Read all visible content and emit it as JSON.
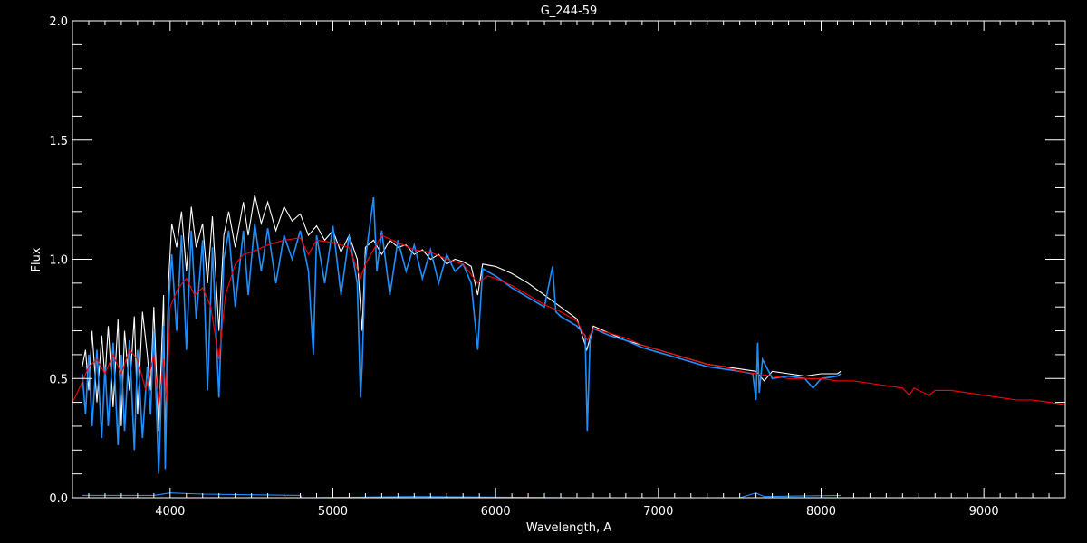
{
  "chart_data": {
    "type": "line",
    "title": "G_244-59",
    "xlabel": "Wavelength, A",
    "ylabel": "Flux",
    "xlim": [
      3400,
      9500
    ],
    "ylim": [
      0.0,
      2.0
    ],
    "xticks": [
      4000,
      5000,
      6000,
      7000,
      8000,
      9000
    ],
    "xtick_labels": [
      "4000",
      "5000",
      "6000",
      "7000",
      "8000",
      "9000"
    ],
    "x_minor_step": 100,
    "yticks": [
      0.0,
      0.5,
      1.0,
      1.5,
      2.0
    ],
    "ytick_labels": [
      "0.0",
      "0.5",
      "1.0",
      "1.5",
      "2.0"
    ],
    "y_minor_step": 0.1,
    "grid": false,
    "background": "#000000",
    "series": [
      {
        "color": "#ffffff",
        "points": [
          [
            3460,
            0.55
          ],
          [
            3480,
            0.62
          ],
          [
            3500,
            0.45
          ],
          [
            3520,
            0.7
          ],
          [
            3550,
            0.4
          ],
          [
            3580,
            0.68
          ],
          [
            3600,
            0.5
          ],
          [
            3620,
            0.72
          ],
          [
            3650,
            0.38
          ],
          [
            3680,
            0.75
          ],
          [
            3700,
            0.3
          ],
          [
            3720,
            0.7
          ],
          [
            3750,
            0.45
          ],
          [
            3780,
            0.76
          ],
          [
            3800,
            0.35
          ],
          [
            3830,
            0.78
          ],
          [
            3860,
            0.6
          ],
          [
            3880,
            0.45
          ],
          [
            3900,
            0.8
          ],
          [
            3930,
            0.28
          ],
          [
            3960,
            0.85
          ],
          [
            3970,
            0.2
          ],
          [
            3990,
            0.9
          ],
          [
            4010,
            1.15
          ],
          [
            4040,
            1.05
          ],
          [
            4070,
            1.2
          ],
          [
            4100,
            0.95
          ],
          [
            4130,
            1.22
          ],
          [
            4160,
            1.05
          ],
          [
            4200,
            1.15
          ],
          [
            4230,
            0.9
          ],
          [
            4260,
            1.18
          ],
          [
            4300,
            0.7
          ],
          [
            4330,
            1.1
          ],
          [
            4360,
            1.2
          ],
          [
            4400,
            1.05
          ],
          [
            4450,
            1.24
          ],
          [
            4480,
            1.1
          ],
          [
            4520,
            1.27
          ],
          [
            4560,
            1.15
          ],
          [
            4600,
            1.24
          ],
          [
            4650,
            1.12
          ],
          [
            4700,
            1.22
          ],
          [
            4750,
            1.16
          ],
          [
            4800,
            1.19
          ],
          [
            4850,
            1.1
          ],
          [
            4900,
            1.14
          ],
          [
            4950,
            1.08
          ],
          [
            5000,
            1.12
          ],
          [
            5050,
            1.03
          ],
          [
            5100,
            1.1
          ],
          [
            5150,
            1.0
          ],
          [
            5180,
            0.7
          ],
          [
            5200,
            1.05
          ],
          [
            5250,
            1.08
          ],
          [
            5300,
            1.02
          ],
          [
            5350,
            1.08
          ],
          [
            5400,
            1.05
          ],
          [
            5450,
            1.06
          ],
          [
            5500,
            1.02
          ],
          [
            5550,
            1.04
          ],
          [
            5600,
            1.0
          ],
          [
            5650,
            1.02
          ],
          [
            5700,
            0.98
          ],
          [
            5750,
            1.0
          ],
          [
            5800,
            0.99
          ],
          [
            5850,
            0.97
          ],
          [
            5890,
            0.85
          ],
          [
            5920,
            0.98
          ],
          [
            6000,
            0.97
          ],
          [
            6100,
            0.94
          ],
          [
            6200,
            0.9
          ],
          [
            6300,
            0.85
          ],
          [
            6400,
            0.8
          ],
          [
            6500,
            0.75
          ],
          [
            6560,
            0.62
          ],
          [
            6600,
            0.72
          ],
          [
            6700,
            0.69
          ],
          [
            6800,
            0.66
          ],
          [
            6900,
            0.64
          ],
          [
            7000,
            0.62
          ],
          [
            7100,
            0.6
          ],
          [
            7200,
            0.58
          ],
          [
            7300,
            0.56
          ],
          [
            7400,
            0.55
          ],
          [
            7500,
            0.54
          ],
          [
            7600,
            0.53
          ],
          [
            7650,
            0.49
          ],
          [
            7700,
            0.53
          ],
          [
            7800,
            0.52
          ],
          [
            7900,
            0.51
          ],
          [
            8000,
            0.52
          ],
          [
            8100,
            0.52
          ],
          [
            8120,
            0.53
          ]
        ]
      },
      {
        "color": "#1e8fff",
        "points": [
          [
            3460,
            0.52
          ],
          [
            3480,
            0.35
          ],
          [
            3500,
            0.6
          ],
          [
            3520,
            0.3
          ],
          [
            3550,
            0.62
          ],
          [
            3580,
            0.25
          ],
          [
            3600,
            0.55
          ],
          [
            3620,
            0.3
          ],
          [
            3650,
            0.65
          ],
          [
            3680,
            0.22
          ],
          [
            3700,
            0.6
          ],
          [
            3720,
            0.28
          ],
          [
            3750,
            0.66
          ],
          [
            3780,
            0.2
          ],
          [
            3800,
            0.62
          ],
          [
            3830,
            0.25
          ],
          [
            3860,
            0.55
          ],
          [
            3880,
            0.35
          ],
          [
            3900,
            0.7
          ],
          [
            3930,
            0.1
          ],
          [
            3960,
            0.72
          ],
          [
            3970,
            0.12
          ],
          [
            3990,
            0.8
          ],
          [
            4010,
            1.02
          ],
          [
            4040,
            0.7
          ],
          [
            4070,
            1.1
          ],
          [
            4100,
            0.62
          ],
          [
            4130,
            1.12
          ],
          [
            4160,
            0.75
          ],
          [
            4200,
            1.08
          ],
          [
            4230,
            0.45
          ],
          [
            4260,
            1.05
          ],
          [
            4300,
            0.42
          ],
          [
            4330,
            1.0
          ],
          [
            4360,
            1.12
          ],
          [
            4400,
            0.8
          ],
          [
            4450,
            1.12
          ],
          [
            4480,
            0.85
          ],
          [
            4520,
            1.15
          ],
          [
            4560,
            0.95
          ],
          [
            4600,
            1.13
          ],
          [
            4650,
            0.9
          ],
          [
            4700,
            1.1
          ],
          [
            4750,
            1.0
          ],
          [
            4800,
            1.12
          ],
          [
            4850,
            0.95
          ],
          [
            4880,
            0.6
          ],
          [
            4900,
            1.1
          ],
          [
            4950,
            0.9
          ],
          [
            5000,
            1.14
          ],
          [
            5050,
            0.85
          ],
          [
            5100,
            1.1
          ],
          [
            5150,
            0.9
          ],
          [
            5170,
            0.42
          ],
          [
            5180,
            0.55
          ],
          [
            5200,
            1.0
          ],
          [
            5250,
            1.26
          ],
          [
            5270,
            0.95
          ],
          [
            5300,
            1.12
          ],
          [
            5350,
            0.85
          ],
          [
            5400,
            1.08
          ],
          [
            5450,
            0.95
          ],
          [
            5500,
            1.06
          ],
          [
            5550,
            0.92
          ],
          [
            5600,
            1.04
          ],
          [
            5650,
            0.9
          ],
          [
            5700,
            1.02
          ],
          [
            5750,
            0.95
          ],
          [
            5800,
            0.98
          ],
          [
            5850,
            0.9
          ],
          [
            5890,
            0.62
          ],
          [
            5920,
            0.96
          ],
          [
            6000,
            0.93
          ],
          [
            6100,
            0.88
          ],
          [
            6200,
            0.84
          ],
          [
            6300,
            0.8
          ],
          [
            6350,
            0.97
          ],
          [
            6370,
            0.78
          ],
          [
            6400,
            0.76
          ],
          [
            6500,
            0.72
          ],
          [
            6550,
            0.68
          ],
          [
            6563,
            0.28
          ],
          [
            6580,
            0.66
          ],
          [
            6600,
            0.71
          ],
          [
            6700,
            0.68
          ],
          [
            6800,
            0.66
          ],
          [
            6900,
            0.63
          ],
          [
            7000,
            0.61
          ],
          [
            7100,
            0.59
          ],
          [
            7200,
            0.57
          ],
          [
            7300,
            0.55
          ],
          [
            7400,
            0.54
          ],
          [
            7500,
            0.53
          ],
          [
            7580,
            0.52
          ],
          [
            7600,
            0.41
          ],
          [
            7610,
            0.65
          ],
          [
            7620,
            0.44
          ],
          [
            7640,
            0.58
          ],
          [
            7700,
            0.5
          ],
          [
            7800,
            0.51
          ],
          [
            7900,
            0.5
          ],
          [
            7950,
            0.46
          ],
          [
            8000,
            0.5
          ],
          [
            8100,
            0.51
          ],
          [
            8120,
            0.52
          ]
        ]
      },
      {
        "color": "#ff0000",
        "points": [
          [
            3400,
            0.4
          ],
          [
            3450,
            0.47
          ],
          [
            3500,
            0.55
          ],
          [
            3550,
            0.58
          ],
          [
            3600,
            0.52
          ],
          [
            3650,
            0.6
          ],
          [
            3700,
            0.52
          ],
          [
            3750,
            0.62
          ],
          [
            3800,
            0.58
          ],
          [
            3850,
            0.45
          ],
          [
            3900,
            0.6
          ],
          [
            3930,
            0.38
          ],
          [
            3960,
            0.58
          ],
          [
            3980,
            0.4
          ],
          [
            4000,
            0.8
          ],
          [
            4050,
            0.88
          ],
          [
            4100,
            0.92
          ],
          [
            4150,
            0.85
          ],
          [
            4200,
            0.88
          ],
          [
            4250,
            0.8
          ],
          [
            4300,
            0.58
          ],
          [
            4340,
            0.85
          ],
          [
            4400,
            0.98
          ],
          [
            4450,
            1.02
          ],
          [
            4500,
            1.03
          ],
          [
            4600,
            1.06
          ],
          [
            4700,
            1.08
          ],
          [
            4800,
            1.09
          ],
          [
            4850,
            1.02
          ],
          [
            4900,
            1.08
          ],
          [
            5000,
            1.07
          ],
          [
            5100,
            1.05
          ],
          [
            5170,
            0.92
          ],
          [
            5200,
            0.98
          ],
          [
            5300,
            1.1
          ],
          [
            5400,
            1.07
          ],
          [
            5500,
            1.04
          ],
          [
            5600,
            1.03
          ],
          [
            5700,
            1.0
          ],
          [
            5800,
            0.98
          ],
          [
            5890,
            0.9
          ],
          [
            5950,
            0.93
          ],
          [
            6000,
            0.92
          ],
          [
            6100,
            0.89
          ],
          [
            6200,
            0.85
          ],
          [
            6300,
            0.81
          ],
          [
            6400,
            0.78
          ],
          [
            6500,
            0.74
          ],
          [
            6563,
            0.66
          ],
          [
            6600,
            0.71
          ],
          [
            6700,
            0.69
          ],
          [
            6800,
            0.67
          ],
          [
            6900,
            0.64
          ],
          [
            7000,
            0.62
          ],
          [
            7100,
            0.6
          ],
          [
            7200,
            0.58
          ],
          [
            7300,
            0.56
          ],
          [
            7400,
            0.55
          ],
          [
            7500,
            0.53
          ],
          [
            7600,
            0.52
          ],
          [
            7700,
            0.51
          ],
          [
            7800,
            0.5
          ],
          [
            7900,
            0.5
          ],
          [
            8000,
            0.5
          ],
          [
            8100,
            0.49
          ],
          [
            8200,
            0.49
          ],
          [
            8300,
            0.48
          ],
          [
            8400,
            0.47
          ],
          [
            8500,
            0.46
          ],
          [
            8542,
            0.43
          ],
          [
            8570,
            0.46
          ],
          [
            8662,
            0.43
          ],
          [
            8700,
            0.45
          ],
          [
            8800,
            0.45
          ],
          [
            8900,
            0.44
          ],
          [
            9000,
            0.43
          ],
          [
            9100,
            0.42
          ],
          [
            9200,
            0.41
          ],
          [
            9300,
            0.41
          ],
          [
            9400,
            0.4
          ],
          [
            9500,
            0.39
          ]
        ]
      },
      {
        "color": "#1e8fff",
        "points": [
          [
            3460,
            0.01
          ],
          [
            3900,
            0.01
          ],
          [
            4000,
            0.02
          ],
          [
            4200,
            0.015
          ],
          [
            4800,
            0.01
          ],
          [
            4810,
            0.0
          ],
          [
            5500,
            0.005
          ],
          [
            6500,
            0.0
          ],
          [
            7500,
            0.0
          ],
          [
            7600,
            0.02
          ],
          [
            7650,
            0.005
          ],
          [
            8120,
            0.01
          ]
        ]
      }
    ]
  }
}
